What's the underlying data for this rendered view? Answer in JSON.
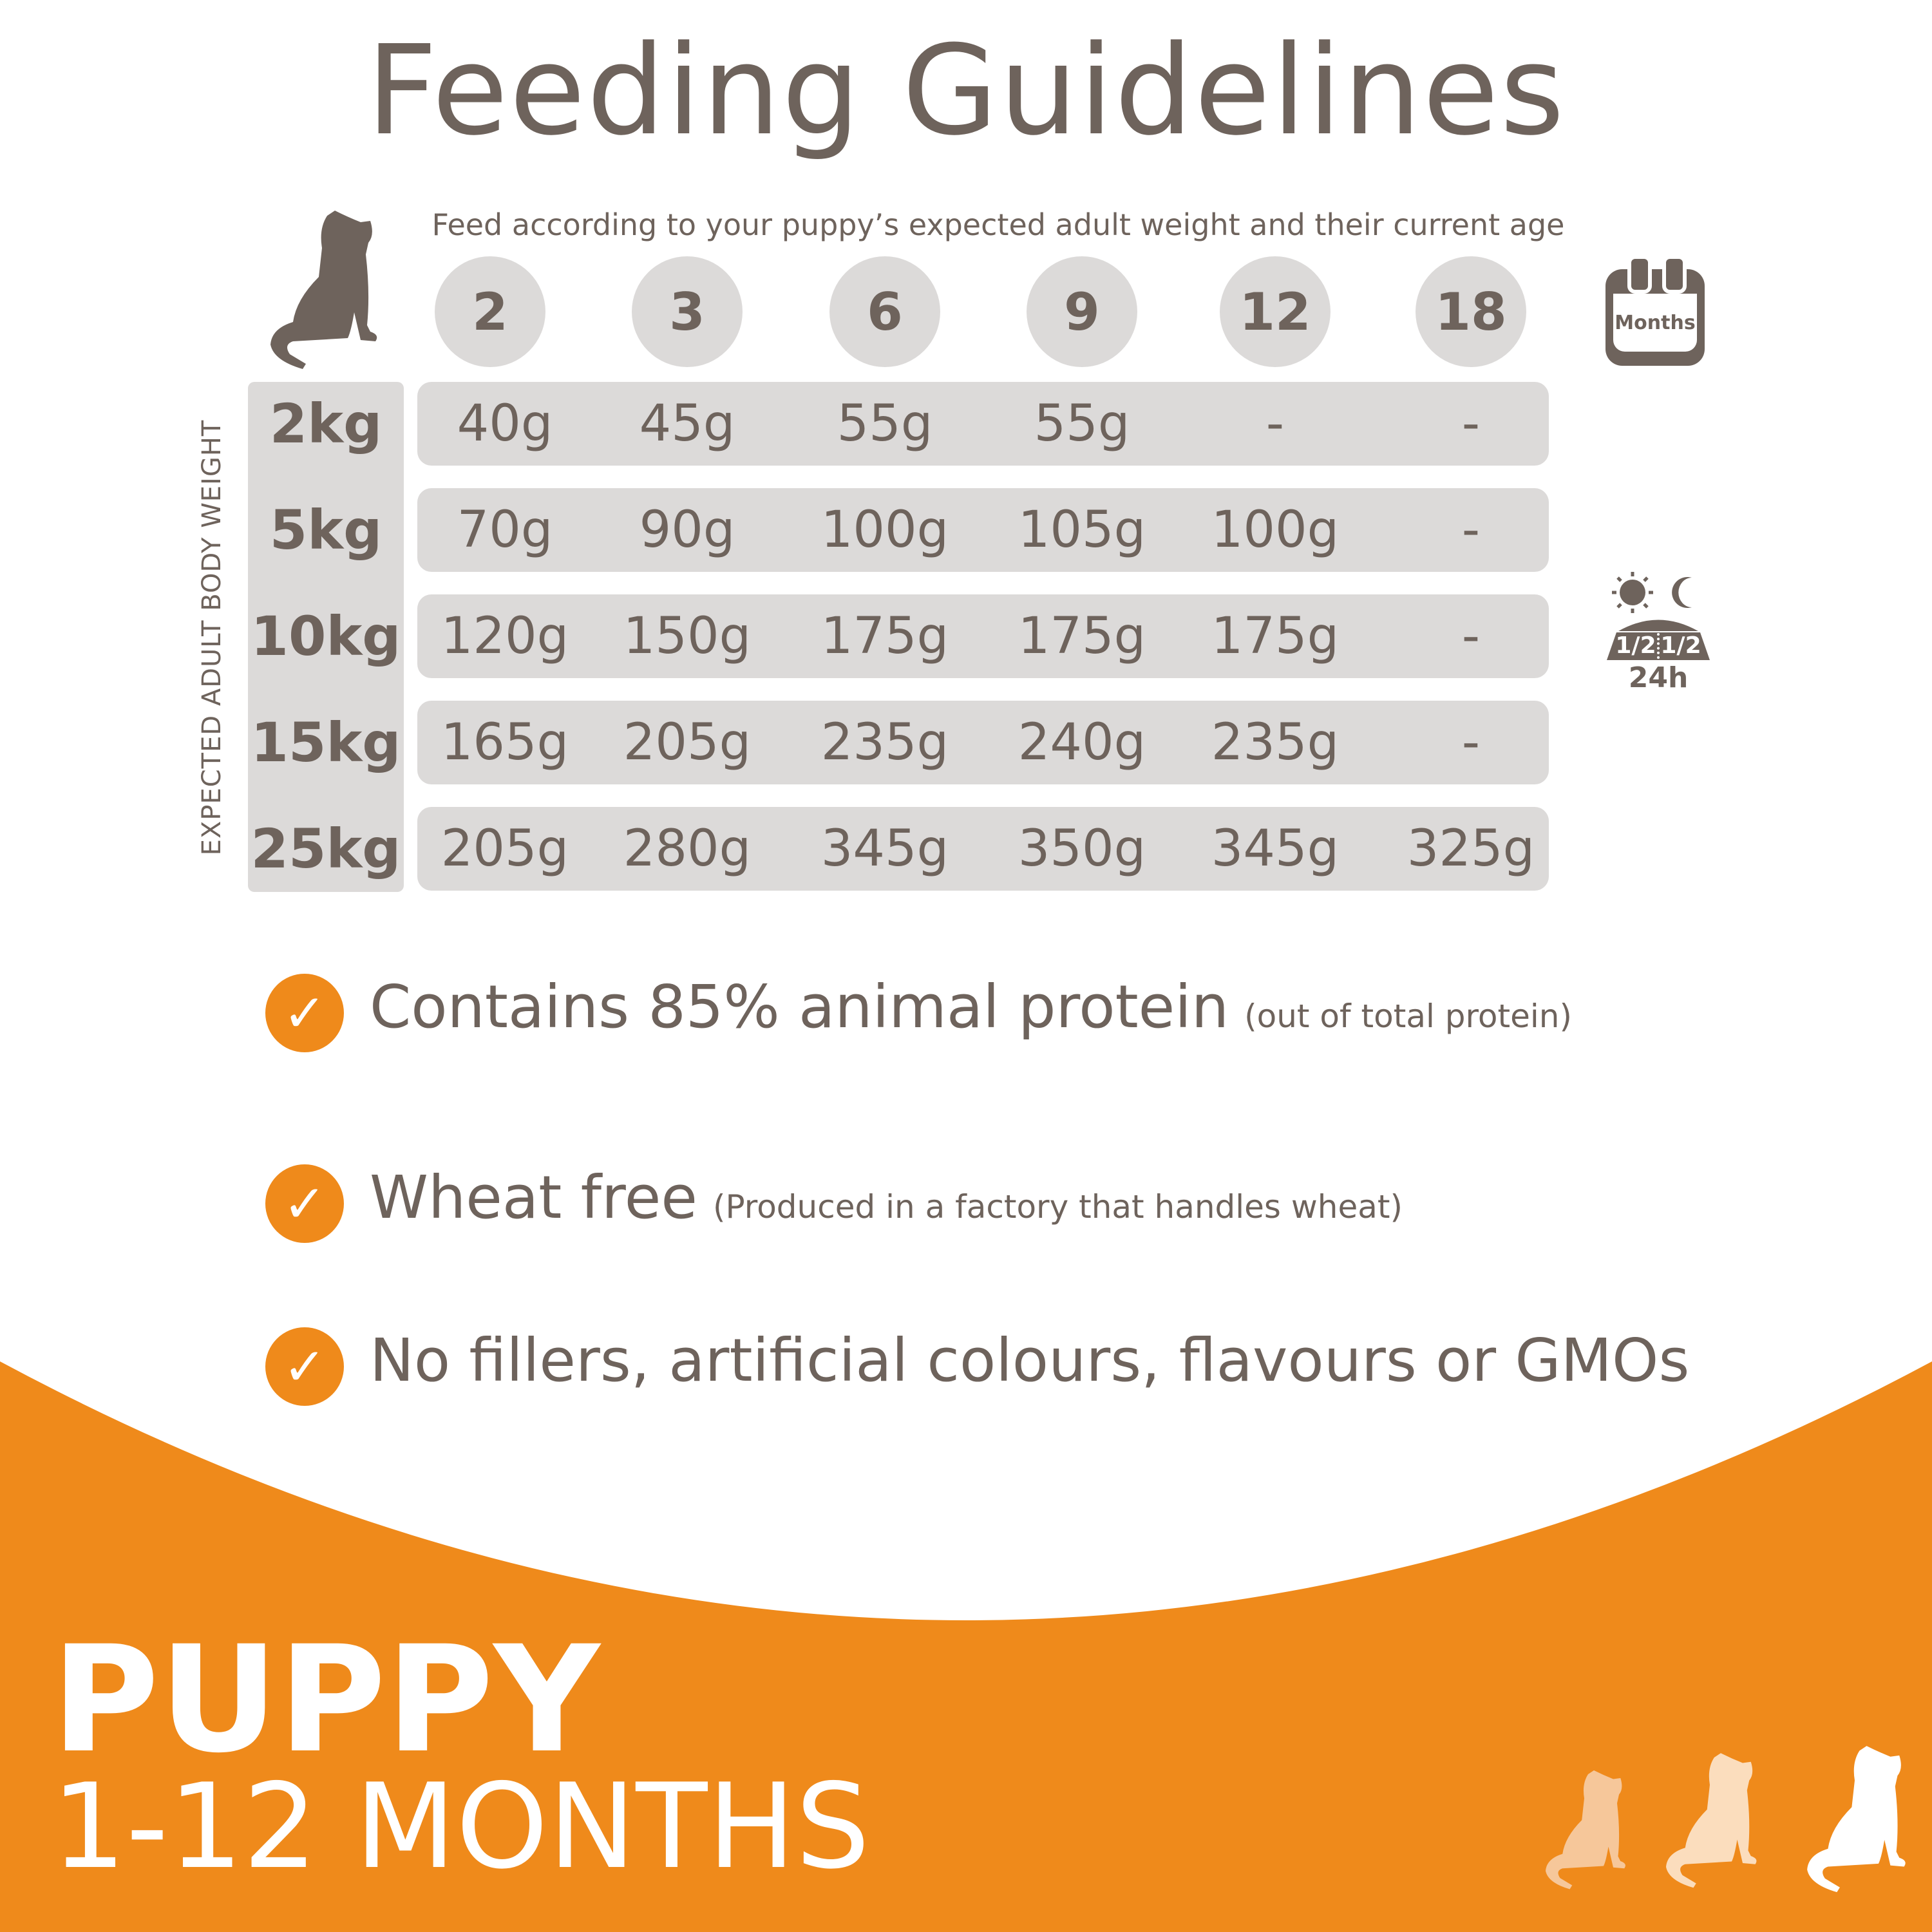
{
  "title": "Feeding Guidelines",
  "subtitle": "Feed according to your puppy’s expected adult weight and their current age",
  "axis_label": "EXPECTED ADULT BODY WEIGHT",
  "age_months": [
    "2",
    "3",
    "6",
    "9",
    "12",
    "18"
  ],
  "calendar_icon_label": "Months",
  "split_icon": {
    "left": "1/2",
    "right": "1/2",
    "caption": "24h"
  },
  "rows": [
    {
      "weight": "2kg",
      "values": [
        "40g",
        "45g",
        "55g",
        "55g",
        "-",
        "-"
      ]
    },
    {
      "weight": "5kg",
      "values": [
        "70g",
        "90g",
        "100g",
        "105g",
        "100g",
        "-"
      ]
    },
    {
      "weight": "10kg",
      "values": [
        "120g",
        "150g",
        "175g",
        "175g",
        "175g",
        "-"
      ]
    },
    {
      "weight": "15kg",
      "values": [
        "165g",
        "205g",
        "235g",
        "240g",
        "235g",
        "-"
      ]
    },
    {
      "weight": "25kg",
      "values": [
        "205g",
        "280g",
        "345g",
        "350g",
        "345g",
        "325g"
      ]
    }
  ],
  "features": [
    {
      "main": "Contains 85% animal protein",
      "note": "(out of total protein)"
    },
    {
      "main": "Wheat free",
      "note": "(Produced in a factory that handles wheat)"
    },
    {
      "main": "No fillers, artificial colours, flavours or GMOs",
      "note": ""
    }
  ],
  "banner": {
    "title": "PUPPY",
    "subtitle": "1-12 MONTHS"
  },
  "colors": {
    "accent": "#ef8a1b",
    "text": "#6e635c",
    "cell": "#dcdad9"
  }
}
